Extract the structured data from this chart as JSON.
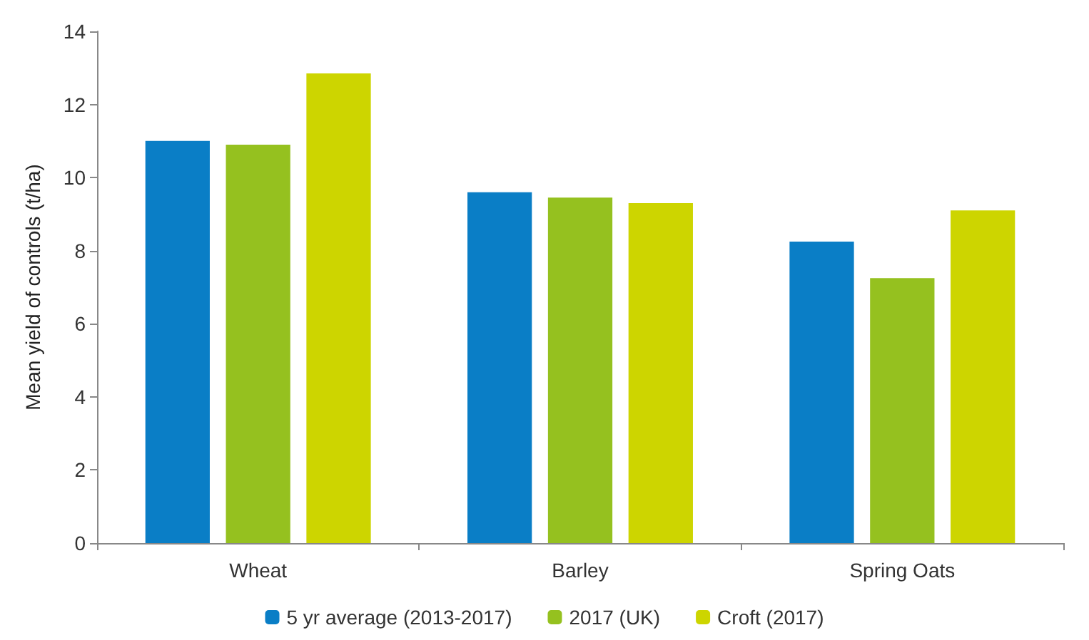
{
  "chart_data": {
    "type": "bar",
    "ylabel": "Mean yield of controls (t/ha)",
    "categories": [
      "Wheat",
      "Barley",
      "Spring Oats"
    ],
    "series": [
      {
        "name": "5 yr average (2013-2017)",
        "color": "#0a7ec6",
        "values": [
          11.0,
          9.6,
          8.25
        ]
      },
      {
        "name": "2017 (UK)",
        "color": "#95c11f",
        "values": [
          10.9,
          9.45,
          7.25
        ]
      },
      {
        "name": "Croft (2017)",
        "color": "#cdd500",
        "values": [
          12.85,
          9.3,
          9.1
        ]
      }
    ],
    "ylim": [
      0,
      14
    ],
    "yticks": [
      0,
      2,
      4,
      6,
      8,
      10,
      12,
      14
    ],
    "grid": false,
    "legend": "bottom"
  }
}
